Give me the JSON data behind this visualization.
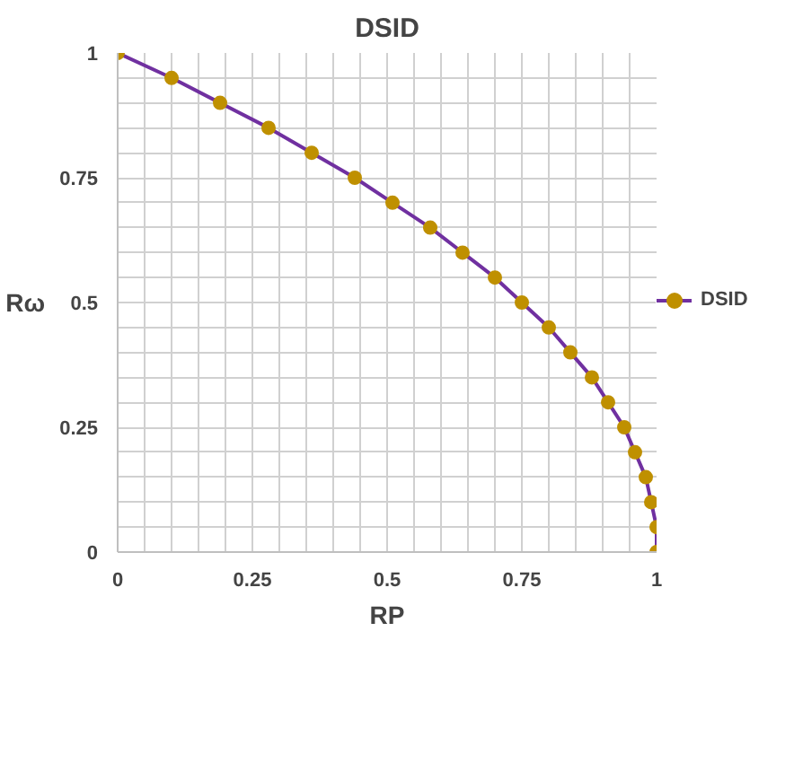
{
  "chart_data": {
    "type": "line",
    "title": "DSID",
    "xlabel": "RP",
    "ylabel": "Rω",
    "x": [
      0,
      0.1,
      0.19,
      0.28,
      0.36,
      0.44,
      0.51,
      0.58,
      0.64,
      0.7,
      0.75,
      0.8,
      0.84,
      0.88,
      0.91,
      0.94,
      0.96,
      0.98,
      0.99,
      1.0,
      1.0
    ],
    "series": [
      {
        "name": "DSID",
        "color": "#7030a0",
        "colors": [
          "#bf9000",
          "#bf9000",
          "#bf9000",
          "#bf9000",
          "#bf9000",
          "#bf9000",
          "#bf9000",
          "#bf9000",
          "#bf9000",
          "#bf9000",
          "#bf9000",
          "#bf9000",
          "#bf9000",
          "#bf9000",
          "#bf9000",
          "#bf9000",
          "#bf9000",
          "#bf9000",
          "#bf9000",
          "#bf9000",
          "#bf9000"
        ],
        "values": [
          1,
          0.95,
          0.9,
          0.85,
          0.8,
          0.75,
          0.7,
          0.65,
          0.6,
          0.55,
          0.5,
          0.45,
          0.4,
          0.35,
          0.3,
          0.25,
          0.2,
          0.15,
          0.1,
          0.05,
          0
        ]
      }
    ],
    "xlim": [
      0,
      1
    ],
    "ylim": [
      0,
      1
    ],
    "xticks": [
      0,
      {
        "value": 0.05,
        "label": null
      },
      {
        "value": 0.1,
        "label": null
      },
      {
        "value": 0.15,
        "label": null
      },
      {
        "value": 0.2,
        "label": null
      },
      0.25,
      {
        "value": 0.3,
        "label": null
      },
      {
        "value": 0.35,
        "label": null
      },
      {
        "value": 0.4,
        "label": null
      },
      {
        "value": 0.45,
        "label": null
      },
      0.5,
      {
        "value": 0.55,
        "label": null
      },
      {
        "value": 0.6,
        "label": null
      },
      {
        "value": 0.65,
        "label": null
      },
      {
        "value": 0.7,
        "label": null
      },
      0.75,
      {
        "value": 0.8,
        "label": null
      },
      {
        "value": 0.85,
        "label": null
      },
      {
        "value": 0.9,
        "label": null
      },
      {
        "value": 0.95,
        "label": null
      },
      1
    ],
    "yticks": [
      0,
      {
        "value": 0.05,
        "label": null
      },
      {
        "value": 0.1,
        "label": null
      },
      {
        "value": 0.15,
        "label": null
      },
      {
        "value": 0.2,
        "label": null
      },
      0.25,
      {
        "value": 0.3,
        "label": null
      },
      {
        "value": 0.35,
        "label": null
      },
      {
        "value": 0.4,
        "label": null
      },
      {
        "value": 0.45,
        "label": null
      },
      0.5,
      {
        "value": 0.55,
        "label": null
      },
      {
        "value": 0.6,
        "label": null
      },
      {
        "value": 0.65,
        "label": null
      },
      {
        "value": 0.7,
        "label": null
      },
      0.75,
      {
        "value": 0.8,
        "label": null
      },
      {
        "value": 0.85,
        "label": null
      },
      {
        "value": 0.9,
        "label": null
      },
      {
        "value": 0.95,
        "label": null
      },
      1
    ],
    "grid": true,
    "legend": "right",
    "marker": "circle",
    "line_style": "solid"
  }
}
